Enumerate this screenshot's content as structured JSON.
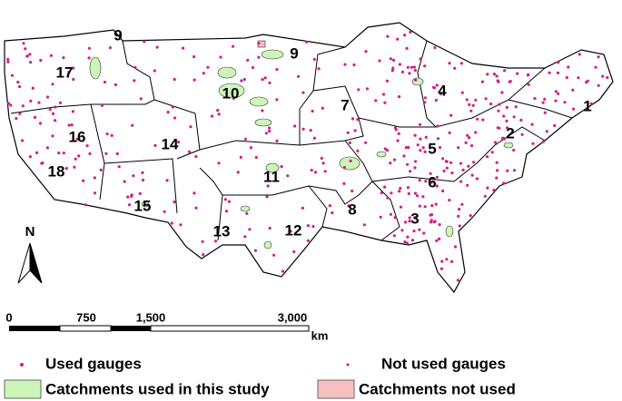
{
  "map": {
    "regions": [
      "1",
      "2",
      "3",
      "4",
      "5",
      "6",
      "7",
      "8",
      "9",
      "9",
      "10",
      "11",
      "12",
      "13",
      "14",
      "15",
      "16",
      "17",
      "18"
    ],
    "north": "N",
    "scale_bar": {
      "ticks": [
        "0",
        "750",
        "1,500",
        "3,000"
      ],
      "unit": "km"
    },
    "legend": [
      "Used gauges",
      "Not used  gauges",
      "Catchments used in this study",
      "Catchments not used"
    ]
  }
}
